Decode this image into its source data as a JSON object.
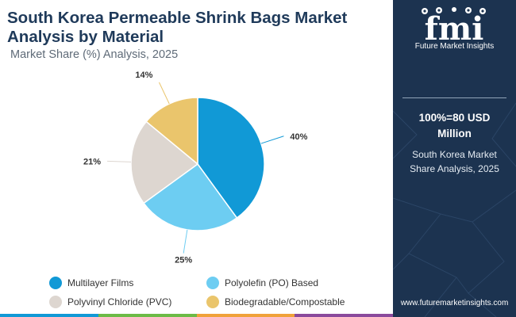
{
  "title": "South Korea Permeable Shrink Bags Market Analysis by Material",
  "subtitle": "Market Share (%) Analysis, 2025",
  "chart_data": {
    "type": "pie",
    "title": "South Korea Permeable Shrink Bags Market Analysis by Material",
    "subtitle": "Market Share (%) Analysis, 2025",
    "categories": [
      "Multilayer Films",
      "Polyolefin (PO) Based",
      "Polyvinyl Chloride (PVC)",
      "Biodegradable/Compostable"
    ],
    "values": [
      40,
      25,
      21,
      14
    ],
    "labels": [
      "40%",
      "25%",
      "21%",
      "14%"
    ],
    "colors": [
      "#1199d6",
      "#6dcdf2",
      "#ddd6d0",
      "#eac56c"
    ],
    "legend_position": "bottom"
  },
  "side_panel": {
    "logo_letters": "fmi",
    "logo_tagline": "Future Market Insights",
    "value_line1": "100%=80 USD",
    "value_line2": "Million",
    "caption_line1": "South Korea Market",
    "caption_line2": "Share Analysis, 2025",
    "website": "www.futuremarketinsights.com"
  },
  "bottom_bar_colors": [
    "#1199d6",
    "#6cbb46",
    "#f0a23a",
    "#8a4a9c"
  ]
}
